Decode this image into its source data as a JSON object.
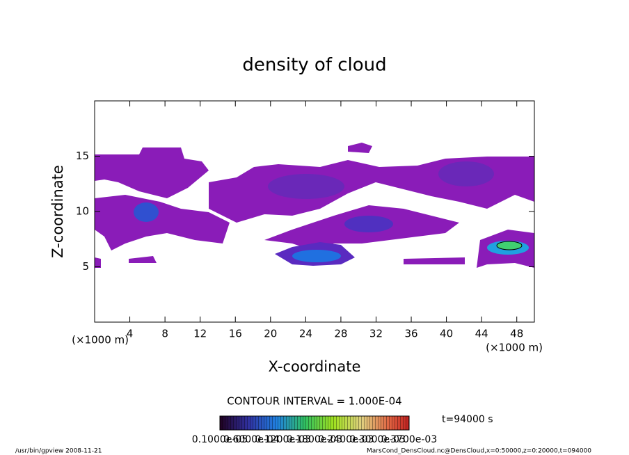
{
  "chart_data": {
    "type": "contour",
    "title": "density of cloud",
    "xlabel": "X-coordinate",
    "ylabel": "Z-coordinate",
    "x_unit": "(×1000 m)",
    "xlim": [
      0,
      50
    ],
    "ylim": [
      0,
      20
    ],
    "xticks": [
      4,
      8,
      12,
      16,
      20,
      24,
      28,
      32,
      36,
      40,
      44,
      48
    ],
    "yticks": [
      5,
      10,
      15
    ],
    "contour_interval": "CONTOUR INTERVAL = 1.000E-04",
    "time_label": "t=94000 s",
    "colorbar_labels": [
      "0.1000e-05",
      "0.6000e-04",
      "0.1200e-03",
      "0.1800e-03",
      "0.2400e-03",
      "0.3000e-03",
      "0.3700e-03"
    ],
    "footer_left": "/usr/bin/gpview   2008-11-21",
    "footer_right": "MarsCond_DensCloud.nc@DensCloud,x=0:50000,z=0:20000,t=094000"
  }
}
